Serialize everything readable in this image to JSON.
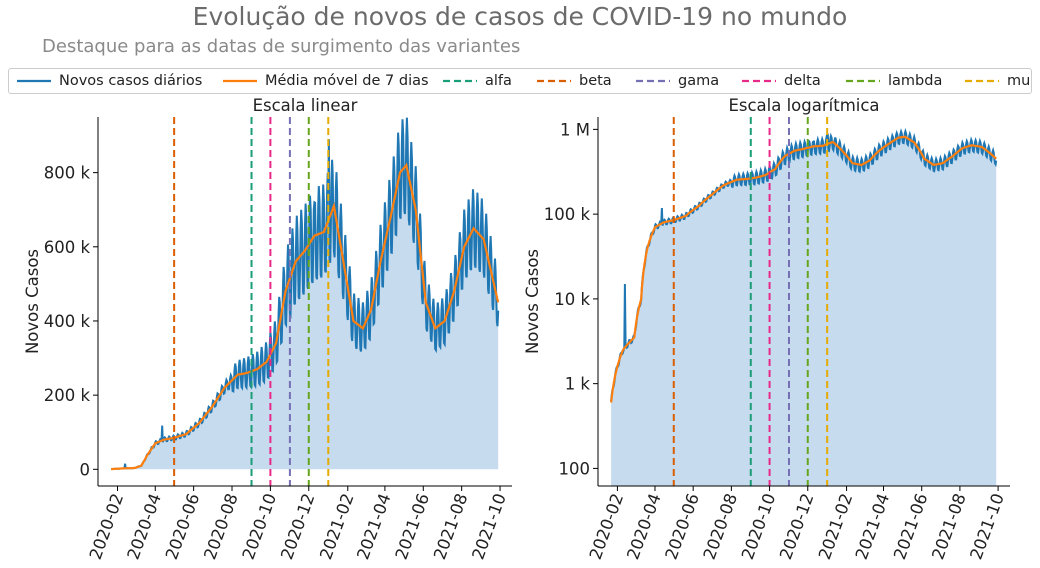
{
  "title": "Evolução de novos de casos de COVID-19 no mundo",
  "subtitle": "Destaque para as datas de surgimento das variantes",
  "colors": {
    "daily": "#1f77b4",
    "moving_avg": "#ff7f0e",
    "fill": "#c6dbed",
    "alfa": "#1b9e77",
    "beta": "#d95f02",
    "gama": "#7570b3",
    "delta": "#e7298a",
    "lambda": "#66a61e",
    "mu": "#e6ab02"
  },
  "legend": [
    {
      "key": "daily",
      "label": "Novos casos diários",
      "style": "solid"
    },
    {
      "key": "moving_avg",
      "label": "Média móvel de 7 dias",
      "style": "solid"
    },
    {
      "key": "alfa",
      "label": "alfa",
      "style": "dashed"
    },
    {
      "key": "beta",
      "label": "beta",
      "style": "dashed"
    },
    {
      "key": "gama",
      "label": "gama",
      "style": "dashed"
    },
    {
      "key": "delta",
      "label": "delta",
      "style": "dashed"
    },
    {
      "key": "lambda",
      "label": "lambda",
      "style": "dashed"
    },
    {
      "key": "mu",
      "label": "mu",
      "style": "dashed"
    }
  ],
  "chart_data": [
    {
      "type": "line",
      "title": "Escala linear",
      "ylabel": "Novos Casos",
      "scale": "linear",
      "ylim": [
        -45000,
        950000
      ],
      "yticks": [
        0,
        200000,
        400000,
        600000,
        800000
      ],
      "ytick_labels": [
        "0",
        "200 k",
        "400 k",
        "600 k",
        "800 k"
      ]
    },
    {
      "type": "line",
      "title": "Escala logarítmica",
      "ylabel": "Novos Casos",
      "scale": "log",
      "ylim": [
        62,
        1400000
      ],
      "yticks": [
        100,
        1000,
        10000,
        100000,
        1000000
      ],
      "ytick_labels": [
        "100",
        "1 k",
        "10 k",
        "100 k",
        "1 M"
      ]
    }
  ],
  "shared": {
    "xlim": [
      "2020-01-01",
      "2021-10-20"
    ],
    "xticks": [
      "2020-02",
      "2020-04",
      "2020-06",
      "2020-08",
      "2020-10",
      "2020-12",
      "2021-02",
      "2021-04",
      "2021-06",
      "2021-08",
      "2021-10"
    ],
    "variants": [
      {
        "name": "beta",
        "date": "2020-05-01"
      },
      {
        "name": "alfa",
        "date": "2020-09-01"
      },
      {
        "name": "delta",
        "date": "2020-10-01"
      },
      {
        "name": "gama",
        "date": "2020-11-01"
      },
      {
        "name": "lambda",
        "date": "2020-12-01"
      },
      {
        "name": "mu",
        "date": "2021-01-01"
      }
    ],
    "daily_range": [
      "2020-01-22",
      "2021-09-28"
    ],
    "moving_average": {
      "dates": [
        "2020-01-22",
        "2020-02-10",
        "2020-02-28",
        "2020-03-10",
        "2020-03-20",
        "2020-04-01",
        "2020-04-15",
        "2020-05-01",
        "2020-05-20",
        "2020-06-10",
        "2020-07-01",
        "2020-07-20",
        "2020-08-10",
        "2020-08-25",
        "2020-09-10",
        "2020-09-25",
        "2020-10-10",
        "2020-10-25",
        "2020-11-10",
        "2020-11-25",
        "2020-12-10",
        "2020-12-25",
        "2021-01-10",
        "2021-01-25",
        "2021-02-10",
        "2021-02-25",
        "2021-03-10",
        "2021-03-25",
        "2021-04-10",
        "2021-04-25",
        "2021-05-05",
        "2021-05-20",
        "2021-06-05",
        "2021-06-20",
        "2021-07-05",
        "2021-07-20",
        "2021-08-05",
        "2021-08-20",
        "2021-09-05",
        "2021-09-28"
      ],
      "values": [
        600,
        2500,
        3500,
        10000,
        40000,
        70000,
        80000,
        85000,
        95000,
        125000,
        170000,
        220000,
        255000,
        260000,
        270000,
        290000,
        340000,
        480000,
        560000,
        590000,
        630000,
        640000,
        710000,
        560000,
        400000,
        380000,
        430000,
        560000,
        680000,
        800000,
        820000,
        700000,
        450000,
        380000,
        400000,
        480000,
        600000,
        650000,
        620000,
        450000
      ]
    },
    "daily_swing": [
      {
        "date": "2020-08-01",
        "amplitude": 0.12
      },
      {
        "date": "2020-11-01",
        "amplitude": 0.18
      },
      {
        "date": "2021-05-01",
        "amplitude": 0.14
      },
      {
        "date": "2021-09-28",
        "amplitude": 0.14
      }
    ],
    "daily_spikes": [
      {
        "date": "2020-02-13",
        "value": 15000
      },
      {
        "date": "2020-04-12",
        "value": 118000
      },
      {
        "date": "2020-12-10",
        "value": 720000
      },
      {
        "date": "2021-01-02",
        "value": 890000
      }
    ]
  }
}
